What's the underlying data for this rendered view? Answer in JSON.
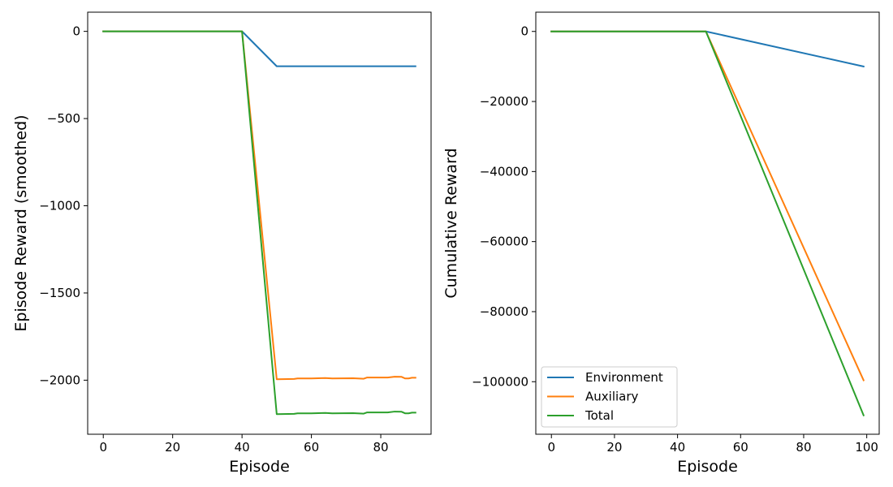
{
  "chart_data": [
    {
      "type": "line",
      "xlabel": "Episode",
      "ylabel": "Episode Reward (smoothed)",
      "xlim": [
        -4.5,
        94.5
      ],
      "ylim": [
        -2310,
        110
      ],
      "xticks": [
        0,
        20,
        40,
        60,
        80
      ],
      "yticks": [
        0,
        -500,
        -1000,
        -1500,
        -2000
      ],
      "xtick_labels": [
        "0",
        "20",
        "40",
        "60",
        "80"
      ],
      "ytick_labels": [
        "0",
        "−500",
        "−1000",
        "−1500",
        "−2000"
      ],
      "grid": false,
      "series": [
        {
          "name": "Environment",
          "color": "#1f77b4",
          "points": [
            [
              0,
              0
            ],
            [
              40,
              0
            ],
            [
              50,
              -200
            ],
            [
              90,
              -200
            ]
          ]
        },
        {
          "name": "Auxiliary",
          "color": "#ff7f0e",
          "points": [
            [
              0,
              0
            ],
            [
              40,
              0
            ],
            [
              50,
              -1995
            ],
            [
              55,
              -1993
            ],
            [
              56,
              -1990
            ],
            [
              60,
              -1990
            ],
            [
              64,
              -1988
            ],
            [
              66,
              -1990
            ],
            [
              72,
              -1989
            ],
            [
              75,
              -1992
            ],
            [
              76,
              -1985
            ],
            [
              82,
              -1985
            ],
            [
              84,
              -1980
            ],
            [
              86,
              -1981
            ],
            [
              87,
              -1990
            ],
            [
              88,
              -1990
            ],
            [
              89,
              -1986
            ],
            [
              90,
              -1986
            ]
          ]
        },
        {
          "name": "Total",
          "color": "#2ca02c",
          "points": [
            [
              0,
              0
            ],
            [
              40,
              0
            ],
            [
              50,
              -2195
            ],
            [
              55,
              -2193
            ],
            [
              56,
              -2190
            ],
            [
              60,
              -2190
            ],
            [
              64,
              -2188
            ],
            [
              66,
              -2190
            ],
            [
              72,
              -2189
            ],
            [
              75,
              -2192
            ],
            [
              76,
              -2185
            ],
            [
              82,
              -2185
            ],
            [
              84,
              -2180
            ],
            [
              86,
              -2181
            ],
            [
              87,
              -2190
            ],
            [
              88,
              -2190
            ],
            [
              89,
              -2186
            ],
            [
              90,
              -2186
            ]
          ]
        }
      ]
    },
    {
      "type": "line",
      "xlabel": "Episode",
      "ylabel": "Cumulative Reward",
      "xlim": [
        -4.95,
        103.95
      ],
      "ylim": [
        -115000,
        5500
      ],
      "xticks": [
        0,
        20,
        40,
        60,
        80,
        100
      ],
      "yticks": [
        0,
        -20000,
        -40000,
        -60000,
        -80000,
        -100000
      ],
      "xtick_labels": [
        "0",
        "20",
        "40",
        "60",
        "80",
        "100"
      ],
      "ytick_labels": [
        "0",
        "−20000",
        "−40000",
        "−60000",
        "−80000",
        "−100000"
      ],
      "grid": false,
      "legend": "lower-left",
      "series": [
        {
          "name": "Environment",
          "color": "#1f77b4",
          "points": [
            [
              0,
              0
            ],
            [
              49,
              0
            ],
            [
              99,
              -10000
            ]
          ]
        },
        {
          "name": "Auxiliary",
          "color": "#ff7f0e",
          "points": [
            [
              0,
              0
            ],
            [
              49,
              0
            ],
            [
              99,
              -99600
            ]
          ]
        },
        {
          "name": "Total",
          "color": "#2ca02c",
          "points": [
            [
              0,
              0
            ],
            [
              49,
              0
            ],
            [
              99,
              -109600
            ]
          ]
        }
      ]
    }
  ]
}
